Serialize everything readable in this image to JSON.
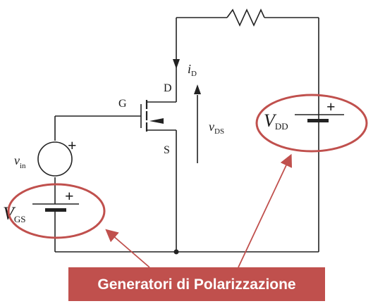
{
  "labels": {
    "current_i": "i",
    "current_sub": "D",
    "drain": "D",
    "gate": "G",
    "source": "S",
    "vds_main": "v",
    "vds_sub": "DS",
    "vin_main": "v",
    "vin_sub": "in",
    "vgs_main": "V",
    "vgs_sub": "GS",
    "vdd_main": "V",
    "vdd_sub": "DD",
    "plus_vin": "+",
    "plus_vgs": "+",
    "plus_vdd": "+"
  },
  "callout": {
    "text": "Generatori di Polarizzazione",
    "color": "#c0504d",
    "text_color": "#ffffff"
  },
  "colors": {
    "wire": "#222222",
    "ellipse": "#c0504d"
  }
}
